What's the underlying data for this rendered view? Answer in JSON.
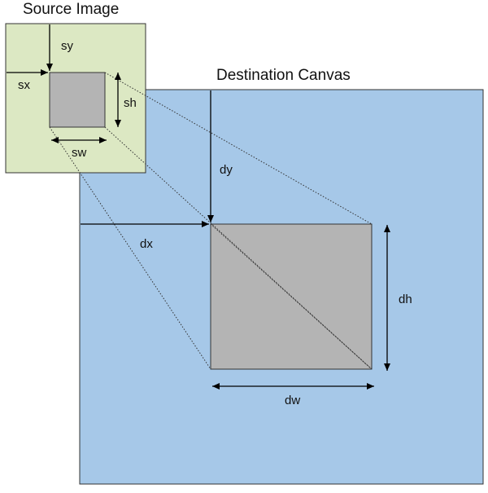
{
  "source": {
    "title": "Source Image",
    "fill": "#dce8c3"
  },
  "destination": {
    "title": "Destination Canvas",
    "fill": "#a6c8e8"
  },
  "region": {
    "fill": "#b4b4b4"
  },
  "labels": {
    "sx": "sx",
    "sy": "sy",
    "sw": "sw",
    "sh": "sh",
    "dx": "dx",
    "dy": "dy",
    "dw": "dw",
    "dh": "dh"
  }
}
